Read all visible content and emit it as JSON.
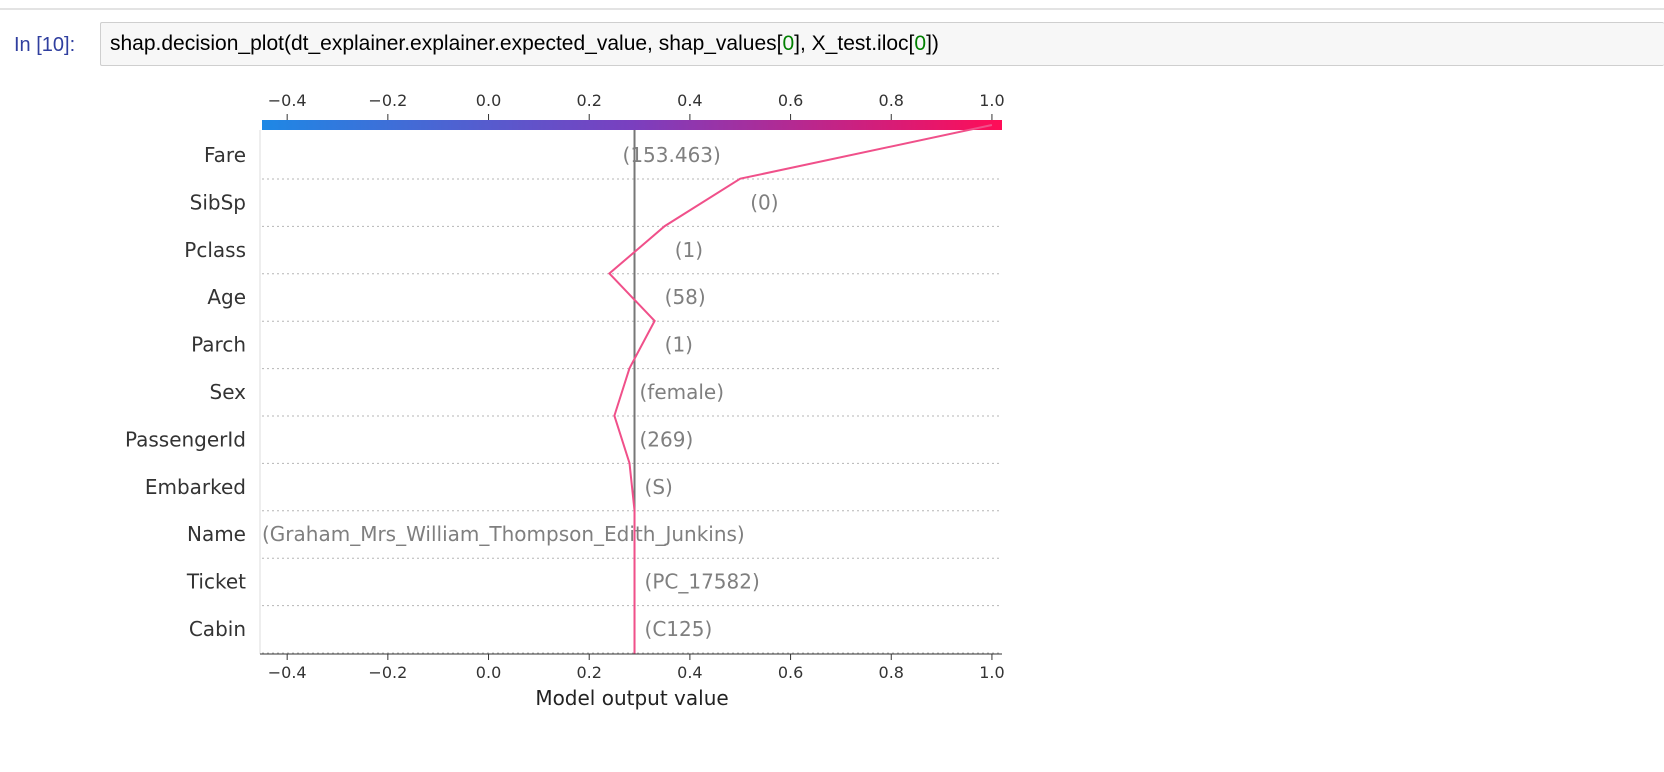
{
  "notebook": {
    "prompt": "In [10]:",
    "code": {
      "p1": "shap.decision_plot(dt_explainer.explainer.expected_value, shap_values[",
      "n1": "0",
      "p2": "], X_test.iloc[",
      "n2": "0",
      "p3": "])"
    }
  },
  "chart_data": {
    "type": "line",
    "xlabel": "Model output value",
    "xlim": [
      -0.45,
      1.02
    ],
    "xticks": [
      -0.4,
      -0.2,
      0.0,
      0.2,
      0.4,
      0.6,
      0.8,
      1.0
    ],
    "xtick_labels": [
      "−0.4",
      "−0.2",
      "0.0",
      "0.2",
      "0.4",
      "0.6",
      "0.8",
      "1.0"
    ],
    "base_value": 0.29,
    "colorbar": {
      "low_color": "#1e88e5",
      "mid_color": "#7a3fbf",
      "high_color": "#ff0d57"
    },
    "line_color": "#f0508a",
    "features": [
      {
        "name": "Fare",
        "value": "(153.463)"
      },
      {
        "name": "SibSp",
        "value": "(0)"
      },
      {
        "name": "Pclass",
        "value": "(1)"
      },
      {
        "name": "Age",
        "value": "(58)"
      },
      {
        "name": "Parch",
        "value": "(1)"
      },
      {
        "name": "Sex",
        "value": "(female)"
      },
      {
        "name": "PassengerId",
        "value": "(269)"
      },
      {
        "name": "Embarked",
        "value": "(S)"
      },
      {
        "name": "Name",
        "value": "(Graham_Mrs_William_Thompson_Edith_Junkins)"
      },
      {
        "name": "Ticket",
        "value": "(PC_17582)"
      },
      {
        "name": "Cabin",
        "value": "(C125)"
      }
    ],
    "cumulative_path": [
      1.0,
      0.5,
      0.35,
      0.24,
      0.33,
      0.28,
      0.25,
      0.28,
      0.29,
      0.29,
      0.29,
      0.29
    ]
  }
}
